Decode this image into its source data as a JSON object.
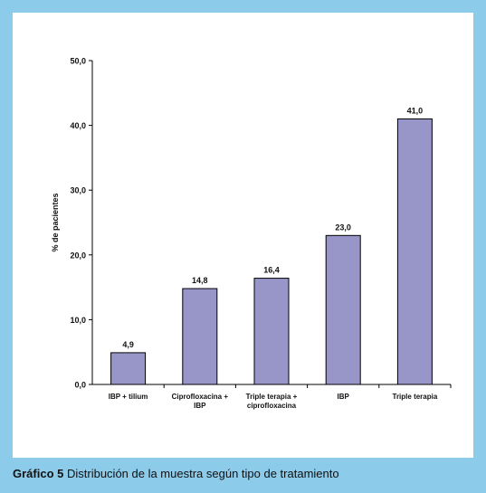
{
  "caption": {
    "lead": "Gráfico 5",
    "text": "Distribución de la muestra según tipo de tratamiento"
  },
  "chart_data": {
    "type": "bar",
    "title": "",
    "xlabel": "",
    "ylabel": "% de pacientes",
    "ylim": [
      0,
      50
    ],
    "yticks": [
      "0,0",
      "10,0",
      "20,0",
      "30,0",
      "40,0",
      "50,0"
    ],
    "categories": [
      [
        "IBP + tilium"
      ],
      [
        "Ciprofloxacina +",
        "IBP"
      ],
      [
        "Triple terapia +",
        "ciprofloxacina"
      ],
      [
        "IBP"
      ],
      [
        "Triple terapia"
      ]
    ],
    "values": [
      4.9,
      14.8,
      16.4,
      23.0,
      41.0
    ],
    "value_labels": [
      "4,9",
      "14,8",
      "16,4",
      "23,0",
      "41,0"
    ],
    "bar_color": "#9896c8",
    "grid": false
  }
}
